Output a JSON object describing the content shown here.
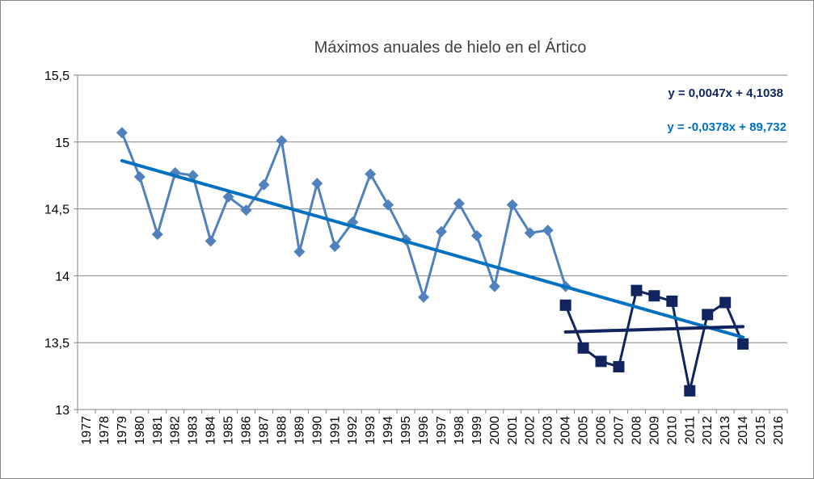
{
  "chart_data": {
    "type": "line",
    "title": "Máximos anuales de hielo en el Ártico",
    "xlabel": "",
    "ylabel": "",
    "xlim": [
      1977,
      2016
    ],
    "ylim": [
      13,
      15.5
    ],
    "x_ticks": [
      "1977",
      "1978",
      "1979",
      "1980",
      "1981",
      "1982",
      "1983",
      "1984",
      "1985",
      "1986",
      "1987",
      "1988",
      "1989",
      "1990",
      "1991",
      "1992",
      "1993",
      "1994",
      "1995",
      "1996",
      "1997",
      "1998",
      "1999",
      "2000",
      "2001",
      "2002",
      "2003",
      "2004",
      "2005",
      "2006",
      "2007",
      "2008",
      "2009",
      "2010",
      "2011",
      "2012",
      "2013",
      "2014",
      "2015",
      "2016"
    ],
    "y_ticks": [
      {
        "value": 13,
        "label": "13"
      },
      {
        "value": 13.5,
        "label": "13,5"
      },
      {
        "value": 14,
        "label": "14"
      },
      {
        "value": 14.5,
        "label": "14,5"
      },
      {
        "value": 15,
        "label": "15"
      },
      {
        "value": 15.5,
        "label": "15,5"
      }
    ],
    "grid": "horizontal",
    "series": [
      {
        "marker": "diamond",
        "color": "#4f81bd",
        "x": [
          1979,
          1980,
          1981,
          1982,
          1983,
          1984,
          1985,
          1986,
          1987,
          1988,
          1989,
          1990,
          1991,
          1992,
          1993,
          1994,
          1995,
          1996,
          1997,
          1998,
          1999,
          2000,
          2001,
          2002,
          2003,
          2004
        ],
        "values": [
          15.07,
          14.74,
          14.31,
          14.77,
          14.75,
          14.26,
          14.59,
          14.49,
          14.68,
          15.01,
          14.18,
          14.69,
          14.22,
          14.4,
          14.76,
          14.53,
          14.27,
          13.84,
          14.33,
          14.54,
          14.3,
          13.92,
          14.53,
          14.32,
          14.34,
          13.92
        ]
      },
      {
        "marker": "square",
        "color": "#10255f",
        "x": [
          2004,
          2005,
          2006,
          2007,
          2008,
          2009,
          2010,
          2011,
          2012,
          2013,
          2014
        ],
        "values": [
          13.78,
          13.46,
          13.36,
          13.32,
          13.89,
          13.85,
          13.81,
          13.14,
          13.71,
          13.8,
          13.49
        ]
      }
    ],
    "trendlines": [
      {
        "equation": "y = -0,0378x + 89,732",
        "color": "#0070c0",
        "x": [
          1979,
          2014
        ],
        "values": [
          14.86,
          13.54
        ]
      },
      {
        "equation": "y = 0,0047x + 4,1038",
        "color": "#10255f",
        "x": [
          2004,
          2014
        ],
        "values": [
          13.58,
          13.62
        ]
      }
    ]
  }
}
